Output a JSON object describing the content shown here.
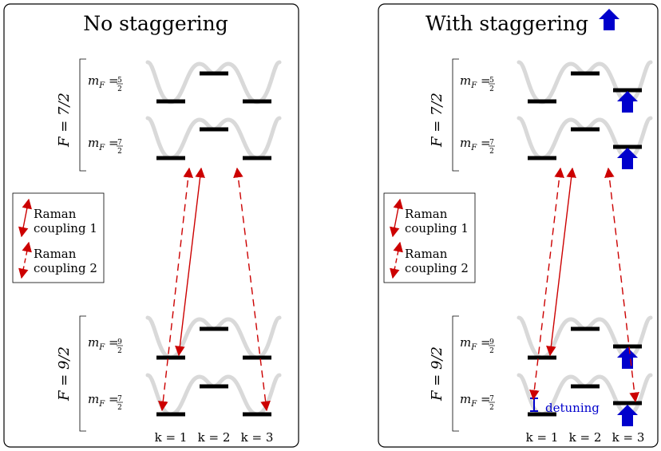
{
  "panels": [
    {
      "title": "No staggering",
      "f_upper": "F = 7/2",
      "f_lower": "F = 9/2",
      "states": [
        {
          "label": "m",
          "sub": "F",
          "num": "5",
          "den": "2"
        },
        {
          "label": "m",
          "sub": "F",
          "num": "7",
          "den": "2"
        },
        {
          "label": "m",
          "sub": "F",
          "num": "9",
          "den": "2"
        },
        {
          "label": "m",
          "sub": "F",
          "num": "7",
          "den": "2"
        }
      ],
      "legend": {
        "r1a": "Raman",
        "r1b": "coupling 1",
        "r2a": "Raman",
        "r2b": "coupling 2"
      },
      "k_labels": [
        "k = 1",
        "k = 2",
        "k = 3"
      ]
    },
    {
      "title": "With staggering",
      "f_upper": "F = 7/2",
      "f_lower": "F = 9/2",
      "states": [
        {
          "label": "m",
          "sub": "F",
          "num": "5",
          "den": "2"
        },
        {
          "label": "m",
          "sub": "F",
          "num": "7",
          "den": "2"
        },
        {
          "label": "m",
          "sub": "F",
          "num": "9",
          "den": "2"
        },
        {
          "label": "m",
          "sub": "F",
          "num": "7",
          "den": "2"
        }
      ],
      "legend": {
        "r1a": "Raman",
        "r1b": "coupling 1",
        "r2a": "Raman",
        "r2b": "coupling 2"
      },
      "k_labels": [
        "k = 1",
        "k = 2",
        "k = 3"
      ],
      "detuning_label": "detuning"
    }
  ],
  "colors": {
    "raman": "#cc0000",
    "stagger_arrow": "#0000cc",
    "well": "#d9d9d9",
    "level": "#000000"
  },
  "icons": [
    "blue-up-arrow-icon"
  ]
}
